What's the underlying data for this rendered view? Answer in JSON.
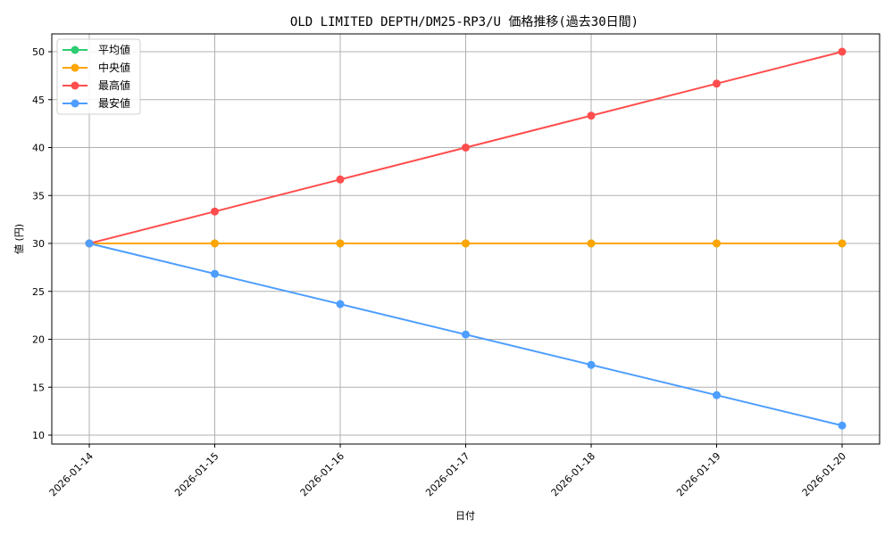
{
  "chart_data": {
    "type": "line",
    "title": "OLD LIMITED DEPTH/DM25-RP3/U 価格推移(過去30日間)",
    "xlabel": "日付",
    "ylabel": "値 (円)",
    "x": [
      "2026-01-14",
      "2026-01-15",
      "2026-01-16",
      "2026-01-17",
      "2026-01-18",
      "2026-01-19",
      "2026-01-20"
    ],
    "ylim": [
      9,
      52
    ],
    "yticks": [
      10,
      15,
      20,
      25,
      30,
      35,
      40,
      45,
      50
    ],
    "grid": true,
    "legend_position": "upper left",
    "series": [
      {
        "name": "平均値",
        "color": "#2ecc71",
        "values": [
          30,
          30,
          30,
          30,
          30,
          30,
          30
        ]
      },
      {
        "name": "中央値",
        "color": "#ffa500",
        "values": [
          30,
          30,
          30,
          30,
          30,
          30,
          30
        ]
      },
      {
        "name": "最高値",
        "color": "#ff4d4d",
        "values": [
          30,
          33.33,
          36.67,
          40,
          43.33,
          46.67,
          50
        ]
      },
      {
        "name": "最安値",
        "color": "#4d9eff",
        "values": [
          30,
          26.83,
          23.67,
          20.5,
          17.33,
          14.17,
          11
        ]
      }
    ]
  }
}
